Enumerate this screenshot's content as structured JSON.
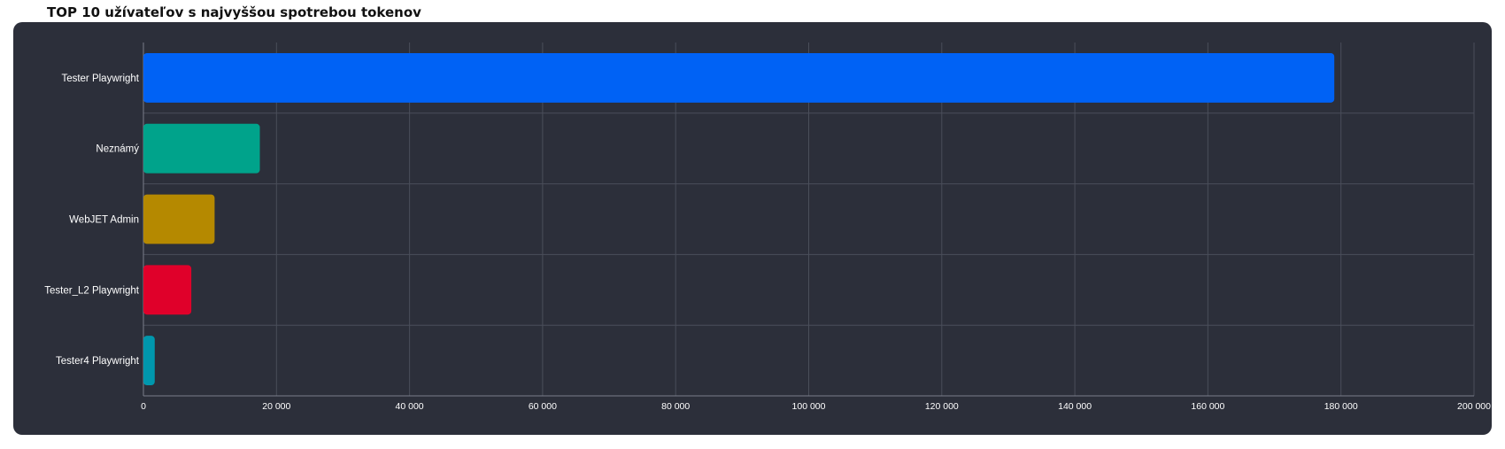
{
  "chart_data": {
    "type": "bar",
    "orientation": "horizontal",
    "title": "TOP 10 užívateľov s najvyššou spotrebou tokenov",
    "categories": [
      "Tester Playwright",
      "Neznámý",
      "WebJET Admin",
      "Tester_L2 Playwright",
      "Tester4 Playwright"
    ],
    "values": [
      179000,
      17500,
      10700,
      7200,
      1700
    ],
    "colors": [
      "#0062f5",
      "#00a38b",
      "#b58900",
      "#e0002a",
      "#0097ad"
    ],
    "xlim": [
      0,
      200000
    ],
    "xticks": [
      0,
      20000,
      40000,
      60000,
      80000,
      100000,
      120000,
      140000,
      160000,
      180000,
      200000
    ],
    "xtick_labels": [
      "0",
      "20 000",
      "40 000",
      "60 000",
      "80 000",
      "100 000",
      "120 000",
      "140 000",
      "160 000",
      "180 000",
      "200 000"
    ],
    "xlabel": "",
    "ylabel": "",
    "grid": true,
    "legend": "none"
  }
}
